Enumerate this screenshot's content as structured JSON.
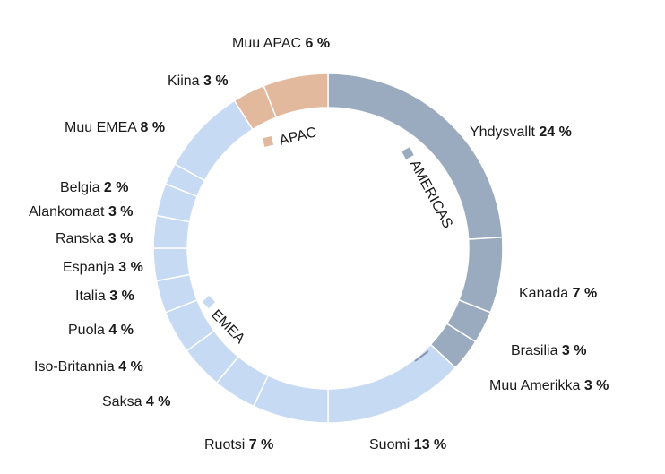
{
  "chart_data": {
    "type": "pie",
    "donut": true,
    "legend": "none",
    "colors": {
      "americas": "#9aabc0",
      "emea": "#c6daf4",
      "apac": "#e3b99d"
    },
    "regions": [
      {
        "key": "americas",
        "label": "AMERICAS"
      },
      {
        "key": "emea",
        "label": "EMEA"
      },
      {
        "key": "apac",
        "label": "APAC"
      }
    ],
    "slices": [
      {
        "name": "Yhdysvallt",
        "pct_label": "24 %",
        "value": 24,
        "region": "americas"
      },
      {
        "name": "Kanada",
        "pct_label": "7 %",
        "value": 7,
        "region": "americas"
      },
      {
        "name": "Brasilia",
        "pct_label": "3 %",
        "value": 3,
        "region": "americas"
      },
      {
        "name": "Muu Amerikka",
        "pct_label": "3 %",
        "value": 3,
        "region": "americas"
      },
      {
        "name": "Suomi",
        "pct_label": "13 %",
        "value": 13,
        "region": "emea"
      },
      {
        "name": "Ruotsi",
        "pct_label": "7 %",
        "value": 7,
        "region": "emea"
      },
      {
        "name": "Saksa",
        "pct_label": "4 %",
        "value": 4,
        "region": "emea"
      },
      {
        "name": "Iso-Britannia",
        "pct_label": "4 %",
        "value": 4,
        "region": "emea"
      },
      {
        "name": "Puola",
        "pct_label": "4 %",
        "value": 4,
        "region": "emea"
      },
      {
        "name": "Italia",
        "pct_label": "3 %",
        "value": 3,
        "region": "emea"
      },
      {
        "name": "Espanja",
        "pct_label": "3 %",
        "value": 3,
        "region": "emea"
      },
      {
        "name": "Ranska",
        "pct_label": "3 %",
        "value": 3,
        "region": "emea"
      },
      {
        "name": "Alankomaat",
        "pct_label": "3 %",
        "value": 3,
        "region": "emea"
      },
      {
        "name": "Belgia",
        "pct_label": "2 %",
        "value": 2,
        "region": "emea"
      },
      {
        "name": "Muu EMEA",
        "pct_label": "8 %",
        "value": 8,
        "region": "emea"
      },
      {
        "name": "Kiina",
        "pct_label": "3 %",
        "value": 3,
        "region": "apac"
      },
      {
        "name": "Muu APAC",
        "pct_label": "6 %",
        "value": 6,
        "region": "apac"
      }
    ]
  }
}
